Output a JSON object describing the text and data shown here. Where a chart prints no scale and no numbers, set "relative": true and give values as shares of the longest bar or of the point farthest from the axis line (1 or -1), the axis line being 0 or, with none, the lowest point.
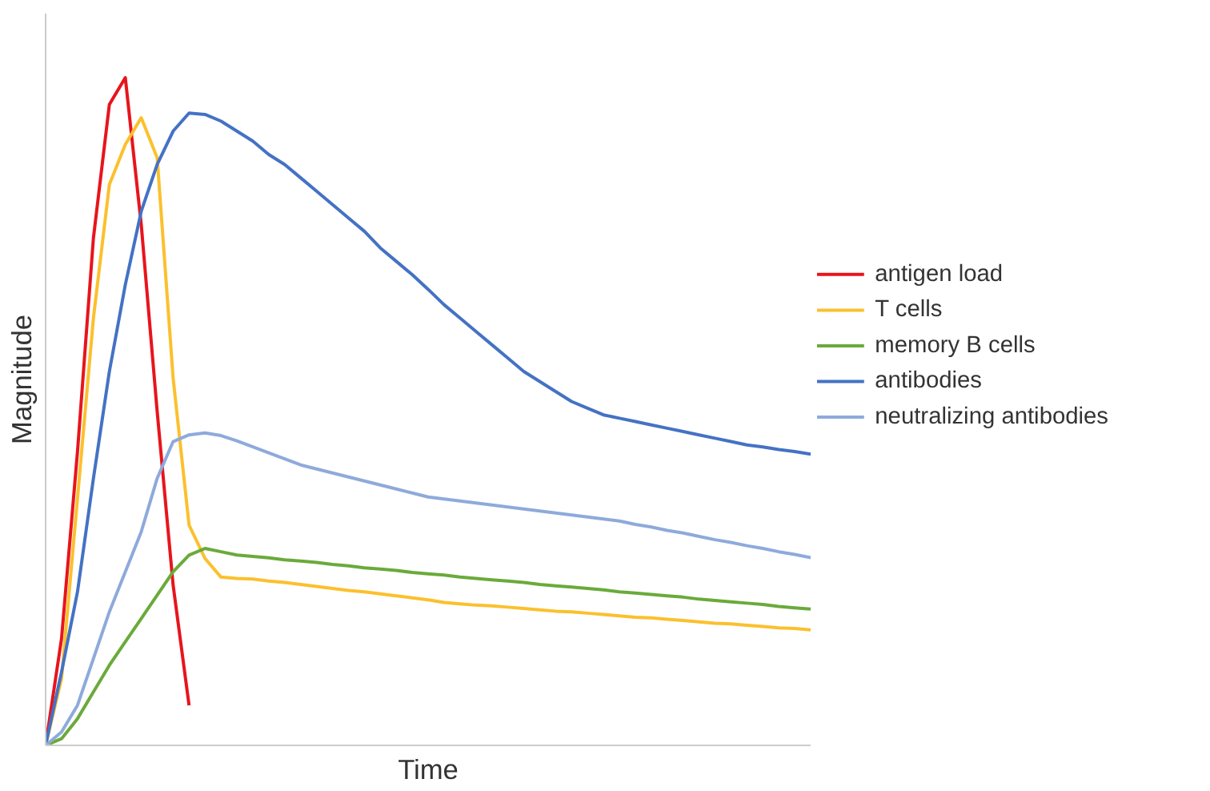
{
  "chart_data": {
    "type": "line",
    "relative": true,
    "xlabel": "Time",
    "ylabel": "Magnitude",
    "categories": [
      null,
      null,
      null,
      null,
      null,
      null,
      null,
      null,
      null,
      null,
      null,
      null,
      null,
      null,
      null,
      null,
      null,
      null,
      null,
      null,
      null,
      null,
      null,
      null,
      null,
      null,
      null,
      null,
      null,
      null,
      null,
      null,
      null,
      null,
      null,
      null,
      null,
      null,
      null,
      null,
      null,
      null,
      null,
      null,
      null,
      null,
      null,
      null,
      null
    ],
    "legend": "right",
    "grid": false,
    "marker": "none",
    "line_style": "solid",
    "series": [
      {
        "name": "antigen load",
        "color": "#e8141c",
        "values": [
          0,
          0.16,
          0.44,
          0.76,
          0.96,
          1,
          0.78,
          0.5,
          0.24,
          0.06,
          null,
          null,
          null,
          null,
          null,
          null,
          null,
          null,
          null,
          null,
          null,
          null,
          null,
          null,
          null,
          null,
          null,
          null,
          null,
          null,
          null,
          null,
          null,
          null,
          null,
          null,
          null,
          null,
          null,
          null,
          null,
          null,
          null,
          null,
          null,
          null,
          null,
          null,
          null
        ]
      },
      {
        "name": "T cells",
        "color": "#fbc02d",
        "values": [
          0,
          0.1,
          0.37,
          0.64,
          0.84,
          0.9,
          0.94,
          0.88,
          0.55,
          0.33,
          0.28,
          0.252,
          0.25,
          0.249,
          0.246,
          0.244,
          0.241,
          0.238,
          0.235,
          0.232,
          0.23,
          0.227,
          0.224,
          0.221,
          0.218,
          0.214,
          0.212,
          0.21,
          0.209,
          0.207,
          0.205,
          0.203,
          0.201,
          0.2,
          0.198,
          0.196,
          0.194,
          0.192,
          0.191,
          0.189,
          0.187,
          0.185,
          0.183,
          0.182,
          0.18,
          0.178,
          0.176,
          0.175,
          0.173
        ]
      },
      {
        "name": "memory B cells",
        "color": "#6aaa3a",
        "values": [
          0,
          0.01,
          0.04,
          0.08,
          0.12,
          0.155,
          0.19,
          0.225,
          0.26,
          0.285,
          0.295,
          0.29,
          0.285,
          0.283,
          0.281,
          0.278,
          0.276,
          0.274,
          0.271,
          0.269,
          0.266,
          0.264,
          0.262,
          0.259,
          0.257,
          0.255,
          0.252,
          0.25,
          0.248,
          0.246,
          0.244,
          0.241,
          0.239,
          0.237,
          0.235,
          0.233,
          0.23,
          0.228,
          0.226,
          0.224,
          0.222,
          0.219,
          0.217,
          0.215,
          0.213,
          0.211,
          0.208,
          0.206,
          0.204
        ]
      },
      {
        "name": "antibodies",
        "color": "#4472c4",
        "values": [
          0,
          0.11,
          0.23,
          0.4,
          0.56,
          0.69,
          0.8,
          0.87,
          0.92,
          0.947,
          0.945,
          0.935,
          0.92,
          0.905,
          0.885,
          0.87,
          0.85,
          0.83,
          0.81,
          0.79,
          0.77,
          0.745,
          0.725,
          0.705,
          0.683,
          0.66,
          0.64,
          0.62,
          0.6,
          0.58,
          0.56,
          0.545,
          0.53,
          0.515,
          0.505,
          0.495,
          0.49,
          0.485,
          0.48,
          0.475,
          0.47,
          0.465,
          0.46,
          0.455,
          0.45,
          0.447,
          0.443,
          0.44,
          0.436
        ]
      },
      {
        "name": "neutralizing antibodies",
        "color": "#8eaadb",
        "values": [
          0,
          0.02,
          0.06,
          0.13,
          0.2,
          0.26,
          0.32,
          0.4,
          0.455,
          0.465,
          0.468,
          0.464,
          0.456,
          0.447,
          0.438,
          0.429,
          0.42,
          0.414,
          0.408,
          0.402,
          0.396,
          0.39,
          0.384,
          0.378,
          0.372,
          0.369,
          0.366,
          0.363,
          0.36,
          0.357,
          0.354,
          0.351,
          0.348,
          0.345,
          0.342,
          0.339,
          0.336,
          0.331,
          0.327,
          0.322,
          0.318,
          0.313,
          0.308,
          0.304,
          0.299,
          0.295,
          0.29,
          0.286,
          0.281
        ]
      }
    ]
  }
}
